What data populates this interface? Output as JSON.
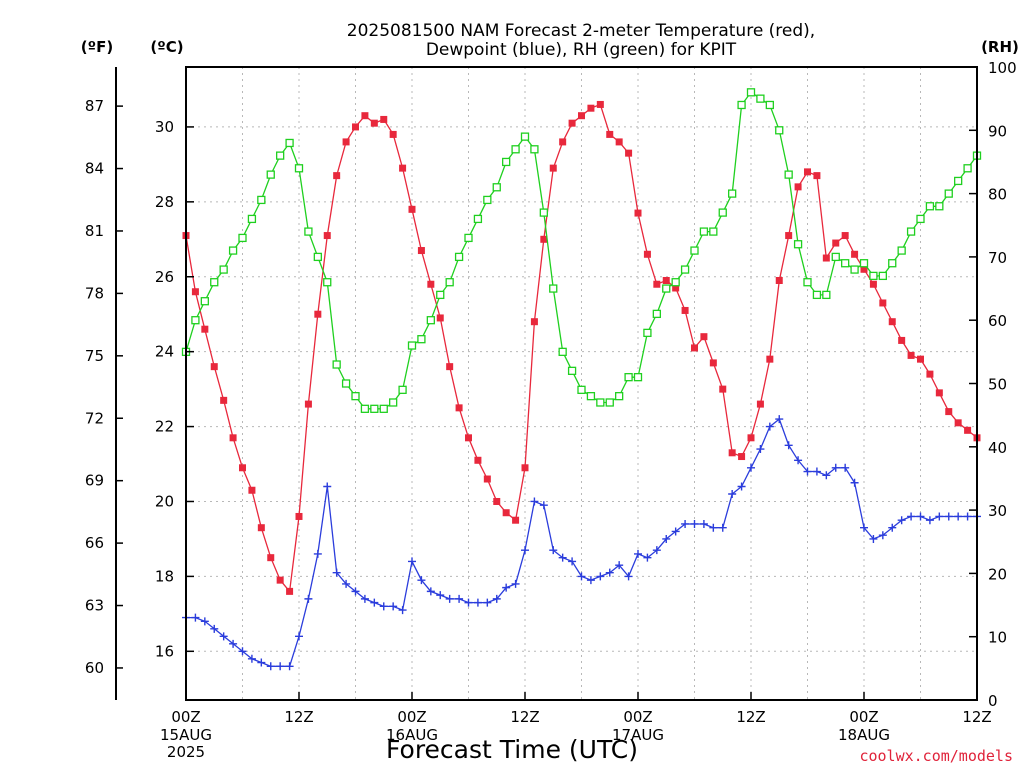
{
  "chart_data": {
    "type": "line",
    "title": "2025081500 NAM Forecast 2-meter Temperature (red),",
    "subtitle": "Dewpoint (blue), RH (green) for KPIT",
    "xlabel": "Forecast Time (UTC)",
    "credit": "coolwx.com/models",
    "units": {
      "fahrenheit": "(ºF)",
      "celsius": "(ºC)",
      "rh": "(RH)"
    },
    "x_unit": "forecast hour",
    "xlim": [
      0,
      84
    ],
    "x_ticks": [
      {
        "x": 0,
        "label": "00Z",
        "date": "15AUG",
        "year": "2025"
      },
      {
        "x": 12,
        "label": "12Z",
        "date": "",
        "year": ""
      },
      {
        "x": 24,
        "label": "00Z",
        "date": "16AUG",
        "year": ""
      },
      {
        "x": 36,
        "label": "12Z",
        "date": "",
        "year": ""
      },
      {
        "x": 48,
        "label": "00Z",
        "date": "17AUG",
        "year": ""
      },
      {
        "x": 60,
        "label": "12Z",
        "date": "",
        "year": ""
      },
      {
        "x": 72,
        "label": "00Z",
        "date": "18AUG",
        "year": ""
      },
      {
        "x": 84,
        "label": "12Z",
        "date": "",
        "year": ""
      }
    ],
    "celsius_ticks": [
      "16",
      "18",
      "20",
      "22",
      "24",
      "26",
      "28",
      "30"
    ],
    "fahrenheit_ticks": [
      "60",
      "63",
      "66",
      "69",
      "72",
      "75",
      "78",
      "81",
      "84",
      "87"
    ],
    "rh_ticks": [
      "0",
      "10",
      "20",
      "30",
      "40",
      "50",
      "60",
      "70",
      "80",
      "90",
      "100"
    ],
    "ylim_celsius": [
      14.7,
      31.6
    ],
    "ylim_rh": [
      0,
      100
    ],
    "grid": true,
    "series": [
      {
        "name": "Temperature (red)",
        "unit": "C",
        "color": "#e8283c",
        "marker": "filled-square",
        "x": [
          0,
          1,
          2,
          3,
          4,
          5,
          6,
          7,
          8,
          9,
          10,
          11,
          12,
          13,
          14,
          15,
          16,
          17,
          18,
          19,
          20,
          21,
          22,
          23,
          24,
          25,
          26,
          27,
          28,
          29,
          30,
          31,
          32,
          33,
          34,
          35,
          36,
          37,
          38,
          39,
          40,
          41,
          42,
          43,
          44,
          45,
          46,
          47,
          48,
          49,
          50,
          51,
          52,
          53,
          54,
          55,
          56,
          57,
          58,
          59,
          60,
          61,
          62,
          63,
          64,
          65,
          66,
          67,
          68,
          69,
          70,
          71,
          72,
          73,
          74,
          75,
          76,
          77,
          78,
          79,
          80,
          81,
          82,
          83,
          84
        ],
        "y": [
          27.1,
          25.6,
          24.6,
          23.6,
          22.7,
          21.7,
          20.9,
          20.3,
          19.3,
          18.5,
          17.9,
          17.6,
          19.6,
          22.6,
          25.0,
          27.1,
          28.7,
          29.6,
          30.0,
          30.3,
          30.1,
          30.2,
          29.8,
          28.9,
          27.8,
          26.7,
          25.8,
          24.9,
          23.6,
          22.5,
          21.7,
          21.1,
          20.6,
          20.0,
          19.7,
          19.5,
          20.9,
          24.8,
          27.0,
          28.9,
          29.6,
          30.1,
          30.3,
          30.5,
          30.6,
          29.8,
          29.6,
          29.3,
          27.7,
          26.6,
          25.8,
          25.9,
          25.7,
          25.1,
          24.1,
          24.4,
          23.7,
          23.0,
          21.3,
          21.2,
          21.7,
          22.6,
          23.8,
          25.9,
          27.1,
          28.4,
          28.8,
          28.7,
          26.5,
          26.9,
          27.1,
          26.6,
          26.2,
          25.8,
          25.3,
          24.8,
          24.3,
          23.9,
          23.8,
          23.4,
          22.9,
          22.4,
          22.1,
          21.9,
          21.7
        ]
      },
      {
        "name": "Dewpoint (blue)",
        "unit": "C",
        "color": "#2b3ddc",
        "marker": "plus",
        "x": [
          0,
          1,
          2,
          3,
          4,
          5,
          6,
          7,
          8,
          9,
          10,
          11,
          12,
          13,
          14,
          15,
          16,
          17,
          18,
          19,
          20,
          21,
          22,
          23,
          24,
          25,
          26,
          27,
          28,
          29,
          30,
          31,
          32,
          33,
          34,
          35,
          36,
          37,
          38,
          39,
          40,
          41,
          42,
          43,
          44,
          45,
          46,
          47,
          48,
          49,
          50,
          51,
          52,
          53,
          54,
          55,
          56,
          57,
          58,
          59,
          60,
          61,
          62,
          63,
          64,
          65,
          66,
          67,
          68,
          69,
          70,
          71,
          72,
          73,
          74,
          75,
          76,
          77,
          78,
          79,
          80,
          81,
          82,
          83,
          84
        ],
        "y": [
          16.9,
          16.9,
          16.8,
          16.6,
          16.4,
          16.2,
          16.0,
          15.8,
          15.7,
          15.6,
          15.6,
          15.6,
          16.4,
          17.4,
          18.6,
          20.4,
          18.1,
          17.8,
          17.6,
          17.4,
          17.3,
          17.2,
          17.2,
          17.1,
          18.4,
          17.9,
          17.6,
          17.5,
          17.4,
          17.4,
          17.3,
          17.3,
          17.3,
          17.4,
          17.7,
          17.8,
          18.7,
          20.0,
          19.9,
          18.7,
          18.5,
          18.4,
          18.0,
          17.9,
          18.0,
          18.1,
          18.3,
          18.0,
          18.6,
          18.5,
          18.7,
          19.0,
          19.2,
          19.4,
          19.4,
          19.4,
          19.3,
          19.3,
          20.2,
          20.4,
          20.9,
          21.4,
          22.0,
          22.2,
          21.5,
          21.1,
          20.8,
          20.8,
          20.7,
          20.9,
          20.9,
          20.5,
          19.3,
          19.0,
          19.1,
          19.3,
          19.5,
          19.6,
          19.6,
          19.5,
          19.6,
          19.6,
          19.6,
          19.6,
          19.6
        ]
      },
      {
        "name": "RH (green)",
        "unit": "%",
        "color": "#1fd01f",
        "marker": "open-square",
        "x": [
          0,
          1,
          2,
          3,
          4,
          5,
          6,
          7,
          8,
          9,
          10,
          11,
          12,
          13,
          14,
          15,
          16,
          17,
          18,
          19,
          20,
          21,
          22,
          23,
          24,
          25,
          26,
          27,
          28,
          29,
          30,
          31,
          32,
          33,
          34,
          35,
          36,
          37,
          38,
          39,
          40,
          41,
          42,
          43,
          44,
          45,
          46,
          47,
          48,
          49,
          50,
          51,
          52,
          53,
          54,
          55,
          56,
          57,
          58,
          59,
          60,
          61,
          62,
          63,
          64,
          65,
          66,
          67,
          68,
          69,
          70,
          71,
          72,
          73,
          74,
          75,
          76,
          77,
          78,
          79,
          80,
          81,
          82,
          83,
          84
        ],
        "y": [
          55,
          60,
          63,
          66,
          68,
          71,
          73,
          76,
          79,
          83,
          86,
          88,
          84,
          74,
          70,
          66,
          53,
          50,
          48,
          46,
          46,
          46,
          47,
          49,
          56,
          57,
          60,
          64,
          66,
          70,
          73,
          76,
          79,
          81,
          85,
          87,
          89,
          87,
          77,
          65,
          55,
          52,
          49,
          48,
          47,
          47,
          48,
          51,
          51,
          58,
          61,
          65,
          66,
          68,
          71,
          74,
          74,
          77,
          80,
          94,
          96,
          95,
          94,
          90,
          83,
          72,
          66,
          64,
          64,
          70,
          69,
          68,
          69,
          67,
          67,
          69,
          71,
          74,
          76,
          78,
          78,
          80,
          82,
          84,
          86
        ]
      }
    ]
  }
}
